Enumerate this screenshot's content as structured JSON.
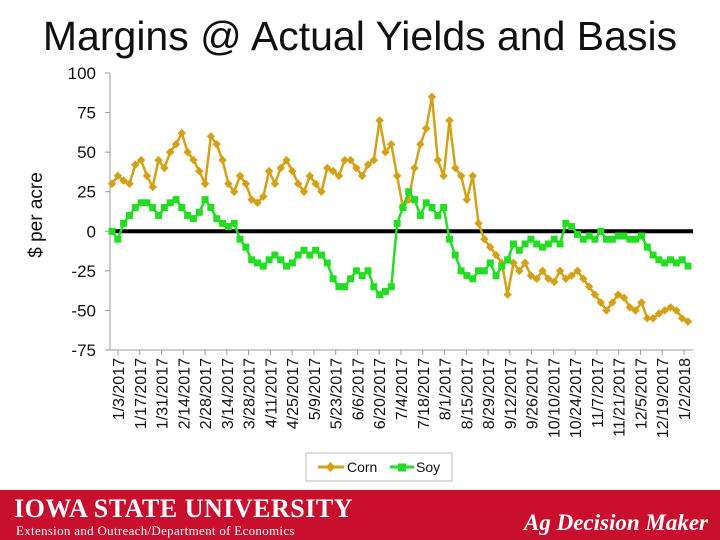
{
  "title": "Margins @ Actual Yields and Basis",
  "footer": {
    "logo_text": "IOWA STATE UNIVERSITY",
    "extension_text": "Extension and Outreach/Department of Economics",
    "brand_text": "Ag Decision Maker"
  },
  "colors": {
    "corn": "#d4a017",
    "soy": "#22dd22",
    "zero_line": "#000000",
    "footer_bg": "#c8102e"
  },
  "chart_data": {
    "type": "line",
    "ylabel": "$ per acre",
    "xlabel": "",
    "ylim": [
      -75,
      100
    ],
    "yticks": [
      100,
      75,
      50,
      25,
      0,
      -25,
      -50,
      -75
    ],
    "ytick_labels": [
      "100",
      "75",
      "50",
      "25",
      "0",
      "-25",
      "-50",
      "-75"
    ],
    "xtick_labels": [
      "1/3/2017",
      "1/17/2017",
      "1/31/2017",
      "2/14/2017",
      "2/28/2017",
      "3/14/2017",
      "3/28/2017",
      "4/11/2017",
      "4/25/2017",
      "5/9/2017",
      "5/23/2017",
      "6/6/2017",
      "6/20/2017",
      "7/4/2017",
      "7/18/2017",
      "8/1/2017",
      "8/15/2017",
      "8/29/2017",
      "9/12/2017",
      "9/26/2017",
      "10/10/2017",
      "10/24/2017",
      "11/7/2017",
      "11/21/2017",
      "12/5/2017",
      "12/19/2017",
      "1/2/2018"
    ],
    "legend": "bottom",
    "series": [
      {
        "name": "Corn",
        "values": [
          30,
          35,
          32,
          30,
          42,
          45,
          35,
          28,
          45,
          40,
          50,
          55,
          62,
          50,
          45,
          38,
          30,
          60,
          55,
          45,
          30,
          25,
          35,
          30,
          20,
          18,
          22,
          38,
          30,
          40,
          45,
          38,
          30,
          25,
          35,
          30,
          25,
          40,
          38,
          35,
          45,
          45,
          40,
          35,
          42,
          45,
          70,
          50,
          55,
          35,
          15,
          20,
          40,
          55,
          65,
          85,
          45,
          35,
          70,
          40,
          35,
          20,
          35,
          5,
          -5,
          -10,
          -15,
          -20,
          -40,
          -20,
          -25,
          -20,
          -28,
          -30,
          -25,
          -30,
          -32,
          -25,
          -30,
          -28,
          -25,
          -30,
          -35,
          -40,
          -45,
          -50,
          -45,
          -40,
          -42,
          -48,
          -50,
          -45,
          -55,
          -55,
          -52,
          -50,
          -48,
          -50,
          -55,
          -57
        ]
      },
      {
        "name": "Soy",
        "values": [
          0,
          -5,
          5,
          10,
          15,
          18,
          18,
          15,
          10,
          15,
          18,
          20,
          15,
          10,
          8,
          12,
          20,
          15,
          8,
          5,
          3,
          5,
          -5,
          -10,
          -18,
          -20,
          -22,
          -18,
          -15,
          -18,
          -22,
          -20,
          -15,
          -12,
          -15,
          -12,
          -15,
          -20,
          -30,
          -35,
          -35,
          -30,
          -25,
          -28,
          -25,
          -35,
          -40,
          -38,
          -35,
          5,
          15,
          25,
          20,
          10,
          18,
          15,
          10,
          15,
          -5,
          -15,
          -25,
          -28,
          -30,
          -25,
          -25,
          -20,
          -28,
          -22,
          -18,
          -8,
          -12,
          -8,
          -5,
          -8,
          -10,
          -8,
          -5,
          -8,
          5,
          3,
          -2,
          -5,
          -3,
          -5,
          0,
          -5,
          -5,
          -3,
          -3,
          -5,
          -5,
          -3,
          -10,
          -15,
          -18,
          -20,
          -18,
          -20,
          -18,
          -22
        ]
      }
    ]
  }
}
